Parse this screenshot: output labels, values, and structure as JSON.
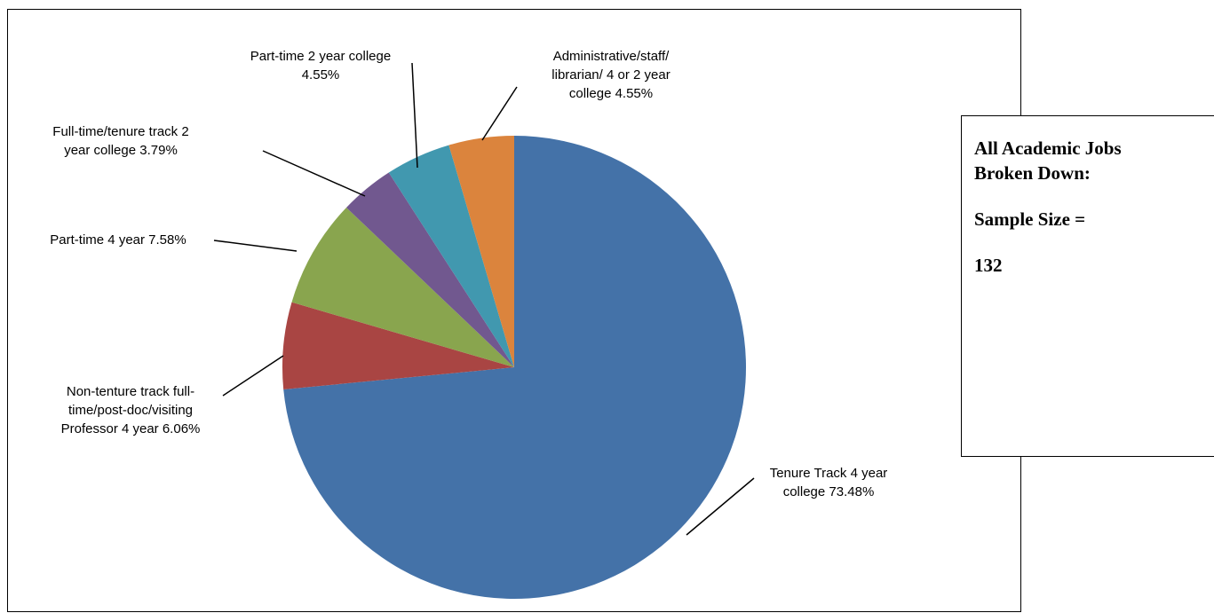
{
  "chart_data": {
    "type": "pie",
    "slices": [
      {
        "label": "Tenure Track 4 year college",
        "value": 73.48,
        "display": "73.48%",
        "color": "#4472A8"
      },
      {
        "label": "Non-tenture track full-time/post-doc/visiting Professor 4 year",
        "value": 6.06,
        "display": "6.06%",
        "color": "#A94543"
      },
      {
        "label": "Part-time 4 year",
        "value": 7.58,
        "display": "7.58%",
        "color": "#89A54E"
      },
      {
        "label": "Full-time/tenure track 2 year college",
        "value": 3.79,
        "display": "3.79%",
        "color": "#71588F"
      },
      {
        "label": "Part-time 2 year college",
        "value": 4.55,
        "display": "4.55%",
        "color": "#4198AF"
      },
      {
        "label": "Administrative/staff/ librarian/ 4 or 2 year college",
        "value": 4.55,
        "display": "4.55%",
        "color": "#DB843D"
      }
    ]
  },
  "labels": [
    {
      "lines": [
        "Tenure Track 4 year",
        "college 73.48%"
      ]
    },
    {
      "lines": [
        "Non-tenture track full-",
        "time/post-doc/visiting",
        "Professor 4 year 6.06%"
      ]
    },
    {
      "lines": [
        "Part-time 4 year 7.58%"
      ]
    },
    {
      "lines": [
        "Full-time/tenure track 2",
        "year college 3.79%"
      ]
    },
    {
      "lines": [
        "Part-time 2 year college",
        "4.55%"
      ]
    },
    {
      "lines": [
        "Administrative/staff/",
        "librarian/ 4 or 2 year",
        "college 4.55%"
      ]
    }
  ],
  "textbox": {
    "line1": "All Academic Jobs",
    "line2": "Broken Down:",
    "line3": "Sample Size =",
    "line4": "132"
  }
}
